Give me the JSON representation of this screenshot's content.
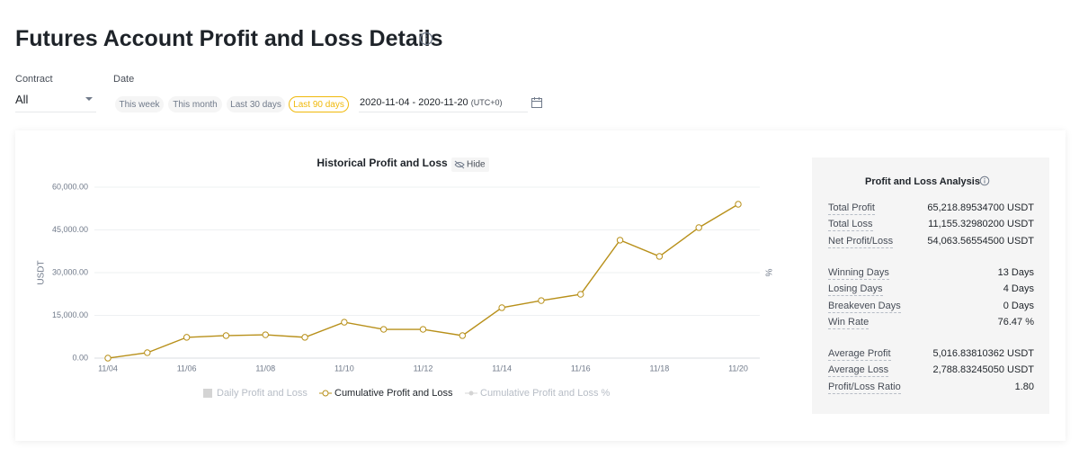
{
  "header": {
    "title": "Futures Account Profit and Loss Details"
  },
  "filters": {
    "contract_label": "Contract",
    "contract_value": "All",
    "date_label": "Date",
    "date_buttons": [
      "This week",
      "This month",
      "Last 30 days",
      "Last 90 days"
    ],
    "active_button": 3,
    "date_range": "2020-11-04 - 2020-11-20",
    "timezone": "(UTC+0)"
  },
  "chart_data": {
    "type": "line",
    "title": "Historical Profit and Loss",
    "hide_label": "Hide",
    "y_label": "USDT",
    "y2_label": "%",
    "categories": [
      "11/04",
      null,
      "11/06",
      null,
      "11/08",
      null,
      "11/10",
      null,
      "11/12",
      null,
      "11/14",
      null,
      "11/16",
      null,
      "11/18",
      null,
      "11/20"
    ],
    "series": [
      {
        "name": "Cumulative Profit and Loss",
        "color": "#b8901a",
        "values": [
          0,
          1900,
          7300,
          7900,
          8200,
          7300,
          12600,
          10100,
          10100,
          7900,
          17700,
          20200,
          22400,
          41400,
          35700,
          45800,
          54000
        ]
      }
    ],
    "inactive_legend": [
      {
        "name": "Daily Profit and Loss",
        "color": "#d4d4d4"
      },
      {
        "name": "Cumulative Profit and Loss %",
        "color": "#d4d4d4"
      }
    ],
    "ylim": [
      0,
      60000
    ],
    "yticks": [
      {
        "value": 0,
        "label": "0.00"
      },
      {
        "value": 15000,
        "label": "15,000.00"
      },
      {
        "value": 30000,
        "label": "30,000.00"
      },
      {
        "value": 45000,
        "label": "45,000.00"
      },
      {
        "value": 60000,
        "label": "60,000.00"
      }
    ],
    "grid": true
  },
  "analysis": {
    "title": "Profit and Loss Analysis",
    "groups": [
      [
        [
          "Total Profit",
          "65,218.89534700 USDT"
        ],
        [
          "Total Loss",
          "11,155.32980200 USDT"
        ],
        [
          "Net Profit/Loss",
          "54,063.56554500 USDT"
        ]
      ],
      [
        [
          "Winning Days",
          "13 Days"
        ],
        [
          "Losing Days",
          "4 Days"
        ],
        [
          "Breakeven Days",
          "0 Days"
        ],
        [
          "Win Rate",
          "76.47 %"
        ]
      ],
      [
        [
          "Average Profit",
          "5,016.83810362 USDT"
        ],
        [
          "Average Loss",
          "2,788.83245050 USDT"
        ],
        [
          "Profit/Loss Ratio",
          "1.80"
        ]
      ]
    ]
  }
}
